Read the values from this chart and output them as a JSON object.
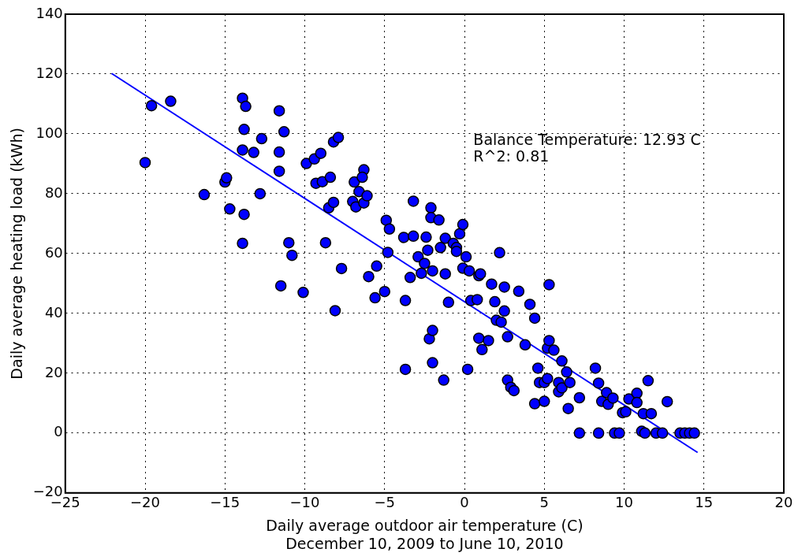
{
  "chart_data": {
    "type": "scatter",
    "xlabel": "Daily average outdoor air temperature (C)\nDecember 10, 2009 to June 10, 2010",
    "ylabel": "Daily average heating load (kWh)",
    "annotations": [
      "Balance Temperature: 12.93 C",
      "R^2: 0.81"
    ],
    "xlim": [
      -25,
      20
    ],
    "xticks": [
      -25,
      -20,
      -15,
      -10,
      -5,
      0,
      5,
      10,
      15,
      20
    ],
    "ylim": [
      -20,
      140
    ],
    "yticks": [
      -20,
      0,
      20,
      40,
      60,
      80,
      100,
      120,
      140
    ],
    "grid": true,
    "legend": false,
    "series": [
      {
        "type": "scatter",
        "marker": "circle",
        "color": "#0000ff",
        "x": [
          -19.6,
          -18.4,
          -20.0,
          -16.3,
          -15.0,
          -14.9,
          -14.7,
          -13.9,
          -13.7,
          -13.8,
          -13.9,
          -13.8,
          -13.9,
          -13.2,
          -12.8,
          -12.7,
          -11.6,
          -11.6,
          -11.6,
          -11.5,
          -11.3,
          -11.0,
          -10.8,
          -10.1,
          -9.9,
          -9.4,
          -9.3,
          -9.0,
          -8.9,
          -8.7,
          -8.5,
          -8.4,
          -8.2,
          -8.2,
          -7.9,
          -8.1,
          -7.7,
          -7.0,
          -6.9,
          -6.8,
          -6.6,
          -6.3,
          -6.3,
          -6.4,
          -6.1,
          -6.0,
          -5.5,
          -5.6,
          -5.0,
          -4.8,
          -4.9,
          -4.7,
          -3.7,
          -3.7,
          -3.4,
          -3.2,
          -3.8,
          -3.2,
          -2.9,
          -2.5,
          -2.7,
          -2.4,
          -2.3,
          -2.1,
          -2.1,
          -2.0,
          -2.2,
          -2.0,
          -2.0,
          -1.6,
          -1.5,
          -1.3,
          -1.2,
          -1.2,
          -1.0,
          -0.7,
          -0.5,
          -0.5,
          -0.3,
          -0.1,
          -0.1,
          0.1,
          0.3,
          0.2,
          0.4,
          0.8,
          0.9,
          1.0,
          0.9,
          1.1,
          1.5,
          1.7,
          1.9,
          2.0,
          2.3,
          2.2,
          2.5,
          2.5,
          2.7,
          2.7,
          2.9,
          3.1,
          3.4,
          3.8,
          4.1,
          4.4,
          4.4,
          4.6,
          4.7,
          5.0,
          5.0,
          5.2,
          5.2,
          5.3,
          5.3,
          5.6,
          5.9,
          5.9,
          6.1,
          6.1,
          6.4,
          6.5,
          6.6,
          7.2,
          7.2,
          8.2,
          8.4,
          8.4,
          8.6,
          8.9,
          9.0,
          9.3,
          9.4,
          9.7,
          9.9,
          10.1,
          10.3,
          10.8,
          10.8,
          11.1,
          11.3,
          11.2,
          11.5,
          11.7,
          12.0,
          12.4,
          12.7,
          13.5,
          13.8,
          14.1,
          14.4
        ],
        "values": [
          109.4,
          110.9,
          90.4,
          79.7,
          83.9,
          85.3,
          74.9,
          111.9,
          109.2,
          101.5,
          94.6,
          73.1,
          63.4,
          93.8,
          80.0,
          98.4,
          107.7,
          93.9,
          87.5,
          49.2,
          100.7,
          63.6,
          59.4,
          47.0,
          90.1,
          91.6,
          83.5,
          93.5,
          84.0,
          63.6,
          75.3,
          85.5,
          77.1,
          97.3,
          98.8,
          40.9,
          55.0,
          77.4,
          83.9,
          75.6,
          80.7,
          76.9,
          88.0,
          85.5,
          79.3,
          52.3,
          55.8,
          45.2,
          47.3,
          60.4,
          71.1,
          68.2,
          21.3,
          44.3,
          52.0,
          77.5,
          65.4,
          65.8,
          58.9,
          56.7,
          53.4,
          65.5,
          61.1,
          75.3,
          72.0,
          54.2,
          31.5,
          34.3,
          23.5,
          71.2,
          62.0,
          17.7,
          65.1,
          53.2,
          43.7,
          63.4,
          62.0,
          60.7,
          66.6,
          69.7,
          55.1,
          58.9,
          54.2,
          21.3,
          44.3,
          44.6,
          52.6,
          53.2,
          31.7,
          27.9,
          30.9,
          49.8,
          43.9,
          37.7,
          37.1,
          60.3,
          48.8,
          40.8,
          32.2,
          17.7,
          15.3,
          14.2,
          47.4,
          29.5,
          43.0,
          38.4,
          9.8,
          21.7,
          16.9,
          16.9,
          10.6,
          18.2,
          28.4,
          30.9,
          49.6,
          27.7,
          16.9,
          13.8,
          15.1,
          24.1,
          20.4,
          8.2,
          16.9,
          11.8,
          0,
          21.7,
          16.7,
          0,
          10.6,
          13.5,
          9.6,
          11.7,
          0,
          0,
          6.8,
          7.1,
          11.4,
          13.3,
          10.2,
          0.6,
          0,
          6.5,
          17.5,
          6.5,
          0,
          0,
          10.5,
          0,
          0,
          0,
          0
        ]
      },
      {
        "type": "line",
        "marker": "none",
        "color": "#0000ff",
        "x": [
          -22.1,
          14.6
        ],
        "values": [
          120.2,
          -6.5
        ]
      }
    ]
  }
}
